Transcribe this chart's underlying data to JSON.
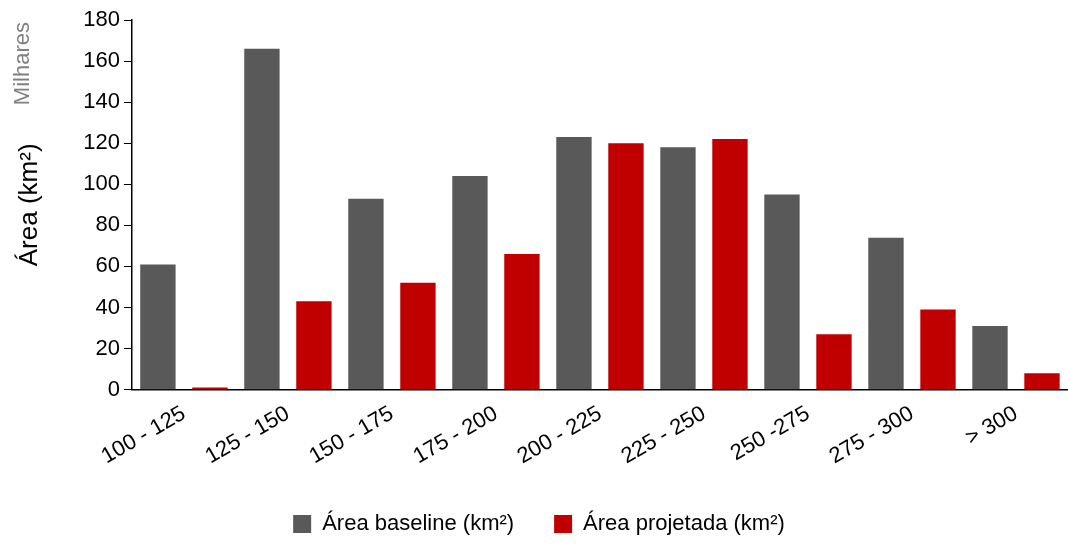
{
  "chart_data": {
    "type": "bar",
    "ylabel": "Área (km²)",
    "annotations": [
      "Milhares"
    ],
    "categories": [
      "100 - 125",
      "125 - 150",
      "150 - 175",
      "175 - 200",
      "200 - 225",
      "225 - 250",
      "250 -275",
      "275 - 300",
      "> 300"
    ],
    "series": [
      {
        "name": "Área baseline (km²)",
        "color": "#595959",
        "values": [
          61,
          166,
          93,
          104,
          123,
          118,
          95,
          74,
          31
        ]
      },
      {
        "name": "Área projetada (km²)",
        "color": "#c00000",
        "values": [
          1,
          43,
          52,
          66,
          120,
          122,
          27,
          39,
          8
        ]
      }
    ],
    "ylim": [
      0,
      180
    ],
    "yticks": [
      0,
      20,
      40,
      60,
      80,
      100,
      120,
      140,
      160,
      180
    ],
    "grid": false,
    "legend": "bottom"
  }
}
